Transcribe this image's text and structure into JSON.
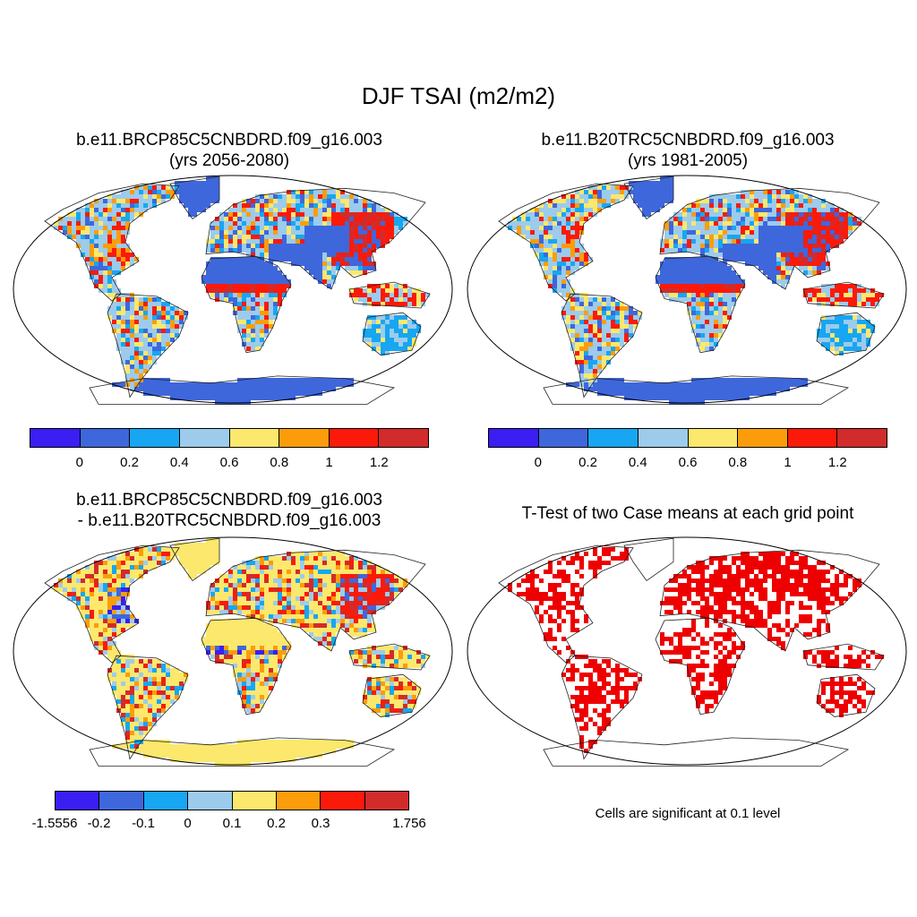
{
  "title": "DJF TSAI (m2/m2)",
  "panels": [
    {
      "id": "p1",
      "line1": "b.e11.BRCP85C5CNBDRD.f09_g16.003",
      "line2": "(yrs 2056-2080)"
    },
    {
      "id": "p2",
      "line1": "b.e11.B20TRC5CNBDRD.f09_g16.003",
      "line2": "(yrs 1981-2005)"
    },
    {
      "id": "p3",
      "line1": "b.e11.BRCP85C5CNBDRD.f09_g16.003",
      "line2": "- b.e11.B20TRC5CNBDRD.f09_g16.003"
    },
    {
      "id": "p4",
      "line1": "T-Test of two Case means at each grid point",
      "line2": ""
    }
  ],
  "colorbar_abs": {
    "colors": [
      "#3a1ef2",
      "#3e67dc",
      "#17a6f2",
      "#9ccbec",
      "#fbe86d",
      "#fb9d0a",
      "#fb1a0a",
      "#d22b2b"
    ],
    "labels": [
      "0",
      "0.2",
      "0.4",
      "0.6",
      "0.8",
      "1",
      "1.2"
    ]
  },
  "colorbar_diff": {
    "colors": [
      "#3a1ef2",
      "#3e67dc",
      "#17a6f2",
      "#9ccbec",
      "#fbe86d",
      "#fb9d0a",
      "#fb1a0a",
      "#d22b2b"
    ],
    "labels": [
      "-1.5556",
      "-0.2",
      "-0.1",
      "0",
      "0.1",
      "0.2",
      "0.3",
      "1.756"
    ]
  },
  "significance_note": "Cells are significant at 0.1 level",
  "significance_color": "#ee0000"
}
